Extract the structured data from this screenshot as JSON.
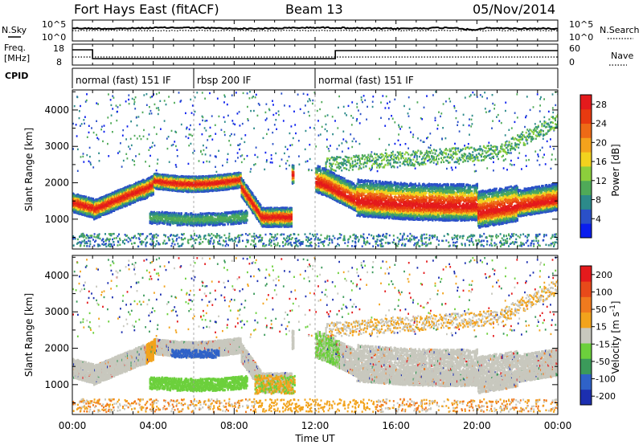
{
  "header": {
    "station": "Fort Hays East (fitACF)",
    "beam": "Beam 13",
    "date": "05/Nov/2014"
  },
  "labels": {
    "n_sky": "N.Sky",
    "n_search": "N.Search",
    "freq_line1": "Freq.",
    "freq_line2": "[MHz]",
    "nave": "Nave",
    "cpid": "CPID",
    "exp10_left_top": "10^5",
    "exp10_left_bot": "10^0",
    "exp10_right_top": "10^5",
    "exp10_right_bot": "10^0",
    "freq_tick_top": "18",
    "freq_tick_bot": "8",
    "nave_tick_top": "60",
    "nave_tick_bot": "0"
  },
  "cpid_segments": [
    {
      "label": "normal (fast) 151 IF",
      "start_hour": 0.0,
      "end_hour": 6.0
    },
    {
      "label": "rbsp 200 IF",
      "start_hour": 6.0,
      "end_hour": 12.0
    },
    {
      "label": "normal (fast) 151 IF",
      "start_hour": 12.0,
      "end_hour": 24.0
    }
  ],
  "chart_data": [
    {
      "type": "heatmap",
      "name": "power",
      "ylabel": "Slant Range [km]",
      "ytick_labels": [
        "1000",
        "2000",
        "3000",
        "4000"
      ],
      "xtick_labels": [
        "00:00",
        "04:00",
        "08:00",
        "12:00",
        "16:00",
        "20:00",
        "00:00"
      ],
      "xlim_hours": [
        0,
        24
      ],
      "ylim_km": [
        180,
        4550
      ],
      "colorbar": {
        "label": "Power [dB]",
        "ticks": [
          "4",
          "8",
          "12",
          "16",
          "20",
          "24",
          "28"
        ],
        "range": [
          0,
          30
        ],
        "colors": [
          "#0a1eee",
          "#2a50c8",
          "#2c8a8a",
          "#4faa58",
          "#8ccf3c",
          "#f2d21e",
          "#f4a21c",
          "#ee6a16",
          "#e83a10",
          "#e41a1c"
        ]
      }
    },
    {
      "type": "heatmap",
      "name": "velocity",
      "ylabel": "Slant Range [km]",
      "ytick_labels": [
        "1000",
        "2000",
        "3000",
        "4000"
      ],
      "xtick_labels": [
        "00:00",
        "04:00",
        "08:00",
        "12:00",
        "16:00",
        "20:00",
        "00:00"
      ],
      "xlabel": "Time UT",
      "xlim_hours": [
        0,
        24
      ],
      "ylim_km": [
        180,
        4550
      ],
      "colorbar": {
        "label_main": "Velocity [m s",
        "label_sup": "-1",
        "label_end": "]",
        "ticks": [
          "200",
          "100",
          "50",
          "15",
          "-15",
          "-50",
          "-100",
          "-200"
        ],
        "colors": [
          "#1c2fb0",
          "#2f62c8",
          "#3b9a5a",
          "#6cd03c",
          "#c8c8be",
          "#f2a31c",
          "#f07a1e",
          "#e84a1a",
          "#e41a1c"
        ]
      }
    }
  ]
}
